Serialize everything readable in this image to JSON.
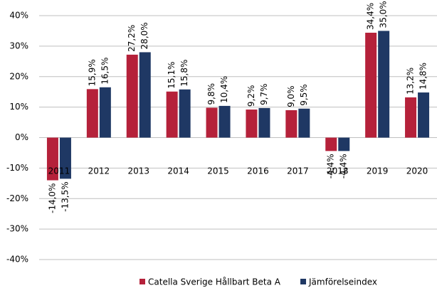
{
  "chart_data": {
    "type": "bar",
    "categories": [
      "2011",
      "2012",
      "2013",
      "2014",
      "2015",
      "2016",
      "2017",
      "2018",
      "2019",
      "2020"
    ],
    "series": [
      {
        "name": "Catella Sverige Hållbart Beta A",
        "color": "#b5213a",
        "values": [
          -14.0,
          15.9,
          27.2,
          15.1,
          9.8,
          9.2,
          9.0,
          -4.4,
          34.4,
          13.2
        ],
        "value_labels": [
          "-14,0%",
          "15,9%",
          "27,2%",
          "15,1%",
          "9,8%",
          "9,2%",
          "9,0%",
          "-4,4%",
          "34,4%",
          "13,2%"
        ]
      },
      {
        "name": "Jämförelseindex",
        "color": "#1f3864",
        "values": [
          -13.5,
          16.5,
          28.0,
          15.8,
          10.4,
          9.7,
          9.5,
          -4.4,
          35.0,
          14.8
        ],
        "value_labels": [
          "-13,5%",
          "16,5%",
          "28,0%",
          "15,8%",
          "10,4%",
          "9,7%",
          "9,5%",
          "-4,4%",
          "35,0%",
          "14,8%"
        ]
      }
    ],
    "ylim": [
      -40,
      40
    ],
    "yticks": [
      {
        "value": -40,
        "label": "-40%"
      },
      {
        "value": -30,
        "label": "-30%"
      },
      {
        "value": -20,
        "label": "-20%"
      },
      {
        "value": -10,
        "label": "-10%"
      },
      {
        "value": 0,
        "label": "0%"
      },
      {
        "value": 10,
        "label": "10%"
      },
      {
        "value": 20,
        "label": "20%"
      },
      {
        "value": 30,
        "label": "30%"
      },
      {
        "value": 40,
        "label": "40%"
      }
    ],
    "grid": true,
    "legend": "bottom"
  }
}
